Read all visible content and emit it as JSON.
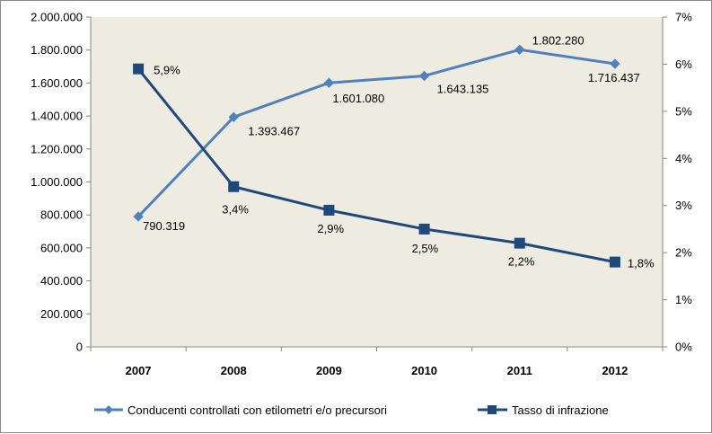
{
  "chart_data": {
    "type": "line",
    "categories": [
      "2007",
      "2008",
      "2009",
      "2010",
      "2011",
      "2012"
    ],
    "series": [
      {
        "name": "Conducenti controllati con etilometri e/o precursori",
        "axis": "left",
        "marker": "diamond",
        "color": "#4f81bd",
        "values": [
          790319,
          1393467,
          1601080,
          1643135,
          1802280,
          1716437
        ],
        "labels": [
          "790.319",
          "1.393.467",
          "1.601.080",
          "1.643.135",
          "1.802.280",
          "1.716.437"
        ]
      },
      {
        "name": "Tasso di infrazione",
        "axis": "right",
        "marker": "square",
        "color": "#1f497d",
        "values": [
          5.9,
          3.4,
          2.9,
          2.5,
          2.2,
          1.8
        ],
        "labels": [
          "5,9%",
          "3,4%",
          "2,9%",
          "2,5%",
          "2,2%",
          "1,8%"
        ]
      }
    ],
    "y_left": {
      "ylim": [
        0,
        2000000
      ],
      "ticks": [
        "0",
        "200.000",
        "400.000",
        "600.000",
        "800.000",
        "1.000.000",
        "1.200.000",
        "1.400.000",
        "1.600.000",
        "1.800.000",
        "2.000.000"
      ]
    },
    "y_right": {
      "ylim": [
        0,
        7
      ],
      "ticks": [
        "0%",
        "1%",
        "2%",
        "3%",
        "4%",
        "5%",
        "6%",
        "7%"
      ]
    },
    "grid": false,
    "legend": "bottom",
    "plot_background": "#eeece1"
  }
}
